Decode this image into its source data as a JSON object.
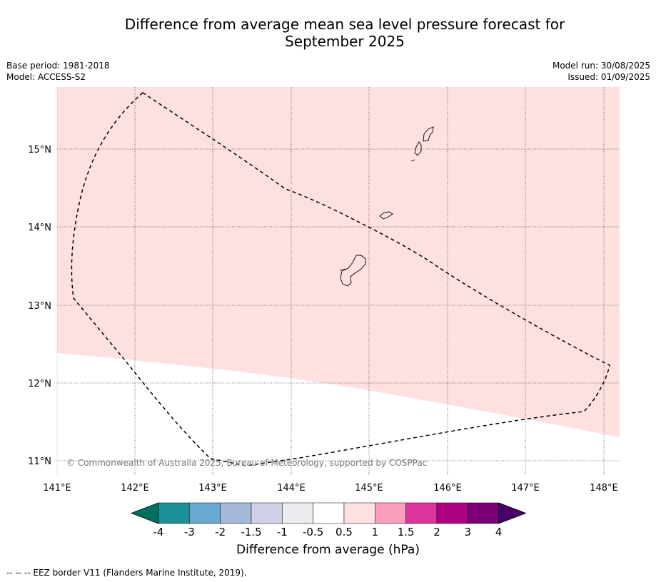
{
  "title_line1": "Difference from average mean sea level pressure forecast for",
  "title_line2": "September 2025",
  "meta_left": {
    "base_period": "Base period: 1981-2018",
    "model": "Model: ACCESS-S2"
  },
  "meta_right": {
    "model_run": "Model run: 30/08/2025",
    "issued": "Issued: 01/09/2025"
  },
  "map": {
    "lon_ticks": [
      "141°E",
      "142°E",
      "143°E",
      "144°E",
      "145°E",
      "146°E",
      "147°E",
      "148°E"
    ],
    "lat_ticks": [
      "15°N",
      "14°N",
      "13°N",
      "12°N",
      "11°N"
    ],
    "copyright": "© Commonwealth of Australia 2025, Bureau of Meteorology, supported by COSPPac",
    "fill_colors": {
      "above_0_5": "#fde0df",
      "neutral": "#ffffff"
    }
  },
  "colorbar": {
    "caption": "Difference from average (hPa)",
    "labels": [
      "-4",
      "-3",
      "-2",
      "-1.5",
      "-1",
      "-0.5",
      "0.5",
      "1",
      "1.5",
      "2",
      "3",
      "4"
    ],
    "colors": [
      "#01705e",
      "#1d9198",
      "#67a9d1",
      "#a5b8d9",
      "#cfcfe6",
      "#ececf0",
      "#ffffff",
      "#fde0df",
      "#f99fbb",
      "#dd349e",
      "#ad0082",
      "#7b0077",
      "#4a006a"
    ]
  },
  "footer": "--  --  -- EEZ border V11 (Flanders Marine Institute, 2019)."
}
